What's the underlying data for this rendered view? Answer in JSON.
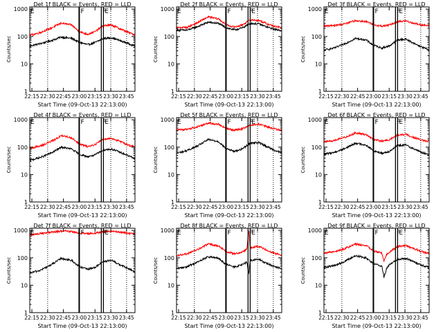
{
  "figure": {
    "ylabel": "Counts/sec",
    "xlabel": "Start Time (09-Oct-13 22:13:00)",
    "x_tick_labels": [
      "22:15",
      "22:30",
      "22:45",
      "23:00",
      "23:15",
      "23:30",
      "23:45"
    ],
    "y_tick_labels": [
      "1",
      "10",
      "100",
      "1000"
    ],
    "colors": {
      "events": "#000000",
      "lld": "#ff0000",
      "axes": "#000000"
    }
  },
  "chart_data": [
    {
      "type": "line",
      "title": "Det 1f BLACK = Events, RED = LLD",
      "scale": "log",
      "x_unit": "minutes after 22:13:00",
      "xlim": [
        0,
        100
      ],
      "ylim": [
        1,
        1200
      ],
      "x_ticks_minutes": [
        2,
        17,
        32,
        47,
        62,
        77,
        92
      ],
      "dotted_lines_minutes": [
        17,
        77,
        92
      ],
      "solid_lines_minutes": [
        47,
        68,
        70
      ],
      "markers": [
        {
          "label": "E",
          "x_minutes": 0
        },
        {
          "label": "F",
          "x_minutes": 47
        },
        {
          "label": "F",
          "x_minutes": 68
        },
        {
          "label": "E",
          "x_minutes": 70
        }
      ],
      "series": [
        {
          "name": "Events",
          "color": "#000000",
          "x": [
            0,
            10,
            20,
            30,
            40,
            47,
            55,
            62,
            70,
            78,
            86,
            94,
            100
          ],
          "values": [
            45,
            55,
            70,
            95,
            85,
            62,
            50,
            60,
            85,
            90,
            70,
            55,
            45
          ]
        },
        {
          "name": "LLD",
          "color": "#ff0000",
          "x": [
            0,
            10,
            20,
            30,
            40,
            47,
            55,
            62,
            70,
            78,
            86,
            94,
            100
          ],
          "values": [
            110,
            140,
            200,
            310,
            260,
            150,
            120,
            150,
            250,
            260,
            190,
            140,
            115
          ]
        }
      ]
    },
    {
      "type": "line",
      "title": "Det 2f BLACK = Events, RED = LLD",
      "scale": "log",
      "x_unit": "minutes after 22:13:00",
      "xlim": [
        0,
        100
      ],
      "ylim": [
        1,
        1200
      ],
      "x_ticks_minutes": [
        2,
        17,
        32,
        47,
        62,
        77,
        92
      ],
      "dotted_lines_minutes": [
        17,
        77,
        92
      ],
      "solid_lines_minutes": [
        47,
        68,
        70
      ],
      "markers": [
        {
          "label": "E",
          "x_minutes": 0
        },
        {
          "label": "F",
          "x_minutes": 47
        },
        {
          "label": "F",
          "x_minutes": 68
        },
        {
          "label": "E",
          "x_minutes": 70
        }
      ],
      "series": [
        {
          "name": "Events",
          "color": "#000000",
          "x": [
            0,
            10,
            20,
            30,
            40,
            47,
            55,
            62,
            70,
            78,
            86,
            94,
            100
          ],
          "values": [
            170,
            170,
            230,
            330,
            300,
            210,
            175,
            200,
            300,
            290,
            220,
            180,
            165
          ]
        },
        {
          "name": "LLD",
          "color": "#ff0000",
          "x": [
            0,
            10,
            20,
            30,
            40,
            47,
            55,
            62,
            70,
            78,
            86,
            94,
            100
          ],
          "values": [
            210,
            215,
            320,
            520,
            440,
            270,
            220,
            260,
            400,
            390,
            290,
            230,
            210
          ]
        }
      ]
    },
    {
      "type": "line",
      "title": "Det 3f BLACK = Events, RED = LLD",
      "scale": "log",
      "x_unit": "minutes after 22:13:00",
      "xlim": [
        0,
        100
      ],
      "ylim": [
        1,
        1200
      ],
      "x_ticks_minutes": [
        2,
        17,
        32,
        47,
        62,
        77,
        92
      ],
      "dotted_lines_minutes": [
        17,
        77,
        92
      ],
      "solid_lines_minutes": [
        47,
        68,
        70
      ],
      "markers": [
        {
          "label": "E",
          "x_minutes": 0
        },
        {
          "label": "F",
          "x_minutes": 47
        },
        {
          "label": "F",
          "x_minutes": 68
        },
        {
          "label": "E",
          "x_minutes": 70
        }
      ],
      "series": [
        {
          "name": "Events",
          "color": "#000000",
          "x": [
            0,
            10,
            20,
            30,
            40,
            47,
            55,
            62,
            70,
            78,
            86,
            94,
            100
          ],
          "values": [
            32,
            38,
            55,
            85,
            75,
            48,
            38,
            45,
            75,
            80,
            55,
            40,
            33
          ]
        },
        {
          "name": "LLD",
          "color": "#ff0000",
          "x": [
            0,
            10,
            20,
            30,
            40,
            47,
            55,
            62,
            70,
            78,
            86,
            94,
            100
          ],
          "values": [
            240,
            250,
            290,
            380,
            350,
            270,
            240,
            260,
            350,
            370,
            300,
            260,
            245
          ]
        }
      ]
    },
    {
      "type": "line",
      "title": "Det 4f BLACK = Events, RED = LLD",
      "scale": "log",
      "x_unit": "minutes after 22:13:00",
      "xlim": [
        0,
        100
      ],
      "ylim": [
        1,
        1200
      ],
      "x_ticks_minutes": [
        2,
        17,
        32,
        47,
        62,
        77,
        92
      ],
      "dotted_lines_minutes": [
        17,
        77,
        92
      ],
      "solid_lines_minutes": [
        47,
        68,
        70
      ],
      "markers": [
        {
          "label": "E",
          "x_minutes": 0
        },
        {
          "label": "F",
          "x_minutes": 47
        },
        {
          "label": "F",
          "x_minutes": 68
        },
        {
          "label": "E",
          "x_minutes": 70
        }
      ],
      "series": [
        {
          "name": "Events",
          "color": "#000000",
          "x": [
            0,
            10,
            20,
            30,
            40,
            47,
            55,
            62,
            70,
            78,
            86,
            94,
            100
          ],
          "values": [
            33,
            42,
            60,
            100,
            85,
            55,
            45,
            52,
            80,
            85,
            65,
            48,
            38
          ]
        },
        {
          "name": "LLD",
          "color": "#ff0000",
          "x": [
            0,
            10,
            20,
            30,
            40,
            47,
            55,
            62,
            70,
            78,
            86,
            94,
            100
          ],
          "values": [
            90,
            110,
            160,
            260,
            220,
            130,
            105,
            125,
            200,
            210,
            160,
            120,
            100
          ]
        }
      ]
    },
    {
      "type": "line",
      "title": "Det 5f BLACK = Events, RED = LLD",
      "scale": "log",
      "x_unit": "minutes after 22:13:00",
      "xlim": [
        0,
        100
      ],
      "ylim": [
        1,
        1200
      ],
      "x_ticks_minutes": [
        2,
        17,
        32,
        47,
        62,
        77,
        92
      ],
      "dotted_lines_minutes": [
        17,
        77,
        92
      ],
      "solid_lines_minutes": [
        47,
        68,
        70
      ],
      "markers": [
        {
          "label": "E",
          "x_minutes": 0
        },
        {
          "label": "F",
          "x_minutes": 47
        },
        {
          "label": "F",
          "x_minutes": 68
        },
        {
          "label": "E",
          "x_minutes": 70
        }
      ],
      "series": [
        {
          "name": "Events",
          "color": "#000000",
          "x": [
            0,
            10,
            20,
            30,
            40,
            47,
            55,
            62,
            70,
            78,
            86,
            94,
            100
          ],
          "values": [
            60,
            75,
            110,
            190,
            160,
            90,
            70,
            85,
            140,
            150,
            105,
            75,
            62
          ]
        },
        {
          "name": "LLD",
          "color": "#ff0000",
          "x": [
            0,
            10,
            20,
            30,
            40,
            47,
            55,
            62,
            70,
            78,
            86,
            94,
            100
          ],
          "values": [
            420,
            450,
            560,
            760,
            690,
            480,
            420,
            460,
            650,
            690,
            560,
            460,
            420
          ]
        }
      ]
    },
    {
      "type": "line",
      "title": "Det 6f BLACK = Events, RED = LLD",
      "scale": "log",
      "x_unit": "minutes after 22:13:00",
      "xlim": [
        0,
        100
      ],
      "ylim": [
        1,
        1200
      ],
      "x_ticks_minutes": [
        2,
        17,
        32,
        47,
        62,
        77,
        92
      ],
      "dotted_lines_minutes": [
        17,
        77,
        92
      ],
      "solid_lines_minutes": [
        47,
        68,
        70
      ],
      "markers": [
        {
          "label": "E",
          "x_minutes": 0
        },
        {
          "label": "F",
          "x_minutes": 47
        },
        {
          "label": "F",
          "x_minutes": 68
        },
        {
          "label": "E",
          "x_minutes": 70
        }
      ],
      "series": [
        {
          "name": "Events",
          "color": "#000000",
          "x": [
            0,
            10,
            20,
            30,
            40,
            47,
            55,
            62,
            70,
            78,
            86,
            94,
            100
          ],
          "values": [
            55,
            65,
            90,
            140,
            120,
            75,
            60,
            70,
            115,
            120,
            85,
            62,
            52
          ]
        },
        {
          "name": "LLD",
          "color": "#ff0000",
          "x": [
            0,
            10,
            20,
            30,
            40,
            47,
            55,
            62,
            70,
            78,
            86,
            94,
            100
          ],
          "values": [
            160,
            175,
            230,
            330,
            290,
            190,
            165,
            185,
            280,
            290,
            220,
            175,
            160
          ]
        }
      ]
    },
    {
      "type": "line",
      "title": "Det 7f BLACK = Events, RED = LLD",
      "scale": "log",
      "x_unit": "minutes after 22:13:00",
      "xlim": [
        0,
        100
      ],
      "ylim": [
        1,
        1200
      ],
      "x_ticks_minutes": [
        2,
        17,
        32,
        47,
        62,
        77,
        92
      ],
      "dotted_lines_minutes": [
        17,
        77,
        92
      ],
      "solid_lines_minutes": [
        47,
        68,
        70
      ],
      "markers": [
        {
          "label": "E",
          "x_minutes": 0
        },
        {
          "label": "F",
          "x_minutes": 47
        },
        {
          "label": "F",
          "x_minutes": 68
        },
        {
          "label": "E",
          "x_minutes": 70
        }
      ],
      "series": [
        {
          "name": "Events",
          "color": "#000000",
          "x": [
            0,
            10,
            20,
            30,
            40,
            47,
            55,
            62,
            70,
            78,
            86,
            94,
            100
          ],
          "values": [
            28,
            35,
            55,
            95,
            80,
            48,
            38,
            45,
            75,
            80,
            55,
            40,
            30
          ]
        },
        {
          "name": "LLD",
          "color": "#ff0000",
          "x": [
            0,
            10,
            20,
            30,
            40,
            47,
            55,
            62,
            70,
            78,
            86,
            94,
            100
          ],
          "values": [
            700,
            760,
            850,
            950,
            920,
            800,
            760,
            790,
            900,
            940,
            860,
            780,
            720
          ]
        }
      ]
    },
    {
      "type": "line",
      "title": "Det 8f BLACK = Events, RED = LLD",
      "scale": "log",
      "x_unit": "minutes after 22:13:00",
      "xlim": [
        0,
        100
      ],
      "ylim": [
        1,
        1200
      ],
      "x_ticks_minutes": [
        2,
        17,
        32,
        47,
        62,
        77,
        92
      ],
      "dotted_lines_minutes": [
        17,
        77,
        92
      ],
      "solid_lines_minutes": [
        47,
        68,
        70
      ],
      "markers": [
        {
          "label": "E",
          "x_minutes": 0
        },
        {
          "label": "F",
          "x_minutes": 47
        },
        {
          "label": "F",
          "x_minutes": 68
        },
        {
          "label": "E",
          "x_minutes": 70
        }
      ],
      "series": [
        {
          "name": "Events",
          "color": "#000000",
          "x": [
            0,
            10,
            20,
            30,
            40,
            47,
            55,
            62,
            67,
            68.5,
            70,
            78,
            86,
            94,
            100
          ],
          "values": [
            40,
            48,
            70,
            110,
            95,
            58,
            46,
            55,
            70,
            25,
            80,
            88,
            62,
            48,
            40
          ]
        },
        {
          "name": "LLD",
          "color": "#ff0000",
          "x": [
            0,
            10,
            20,
            30,
            40,
            47,
            55,
            62,
            67,
            68.5,
            70,
            78,
            86,
            94,
            100
          ],
          "values": [
            120,
            140,
            200,
            320,
            270,
            170,
            140,
            160,
            210,
            1100,
            240,
            260,
            190,
            145,
            125
          ]
        }
      ]
    },
    {
      "type": "line",
      "title": "Det 9f BLACK = Events, RED = LLD",
      "scale": "log",
      "x_unit": "minutes after 22:13:00",
      "xlim": [
        0,
        100
      ],
      "ylim": [
        1,
        1200
      ],
      "x_ticks_minutes": [
        2,
        17,
        32,
        47,
        62,
        77,
        92
      ],
      "dotted_lines_minutes": [
        17,
        77,
        92
      ],
      "solid_lines_minutes": [
        47,
        68,
        70
      ],
      "markers": [
        {
          "label": "E",
          "x_minutes": 0
        },
        {
          "label": "F",
          "x_minutes": 47
        },
        {
          "label": "F",
          "x_minutes": 68
        },
        {
          "label": "E",
          "x_minutes": 70
        }
      ],
      "series": [
        {
          "name": "Events",
          "color": "#000000",
          "x": [
            0,
            10,
            20,
            30,
            40,
            47,
            55,
            57,
            60,
            63,
            70,
            78,
            86,
            94,
            100
          ],
          "values": [
            45,
            52,
            75,
            120,
            100,
            62,
            50,
            20,
            45,
            60,
            90,
            95,
            70,
            52,
            44
          ]
        },
        {
          "name": "LLD",
          "color": "#ff0000",
          "x": [
            0,
            10,
            20,
            30,
            40,
            47,
            55,
            57,
            60,
            63,
            70,
            78,
            86,
            94,
            100
          ],
          "values": [
            150,
            165,
            220,
            320,
            280,
            180,
            150,
            75,
            140,
            170,
            260,
            280,
            210,
            165,
            145
          ]
        }
      ]
    }
  ]
}
